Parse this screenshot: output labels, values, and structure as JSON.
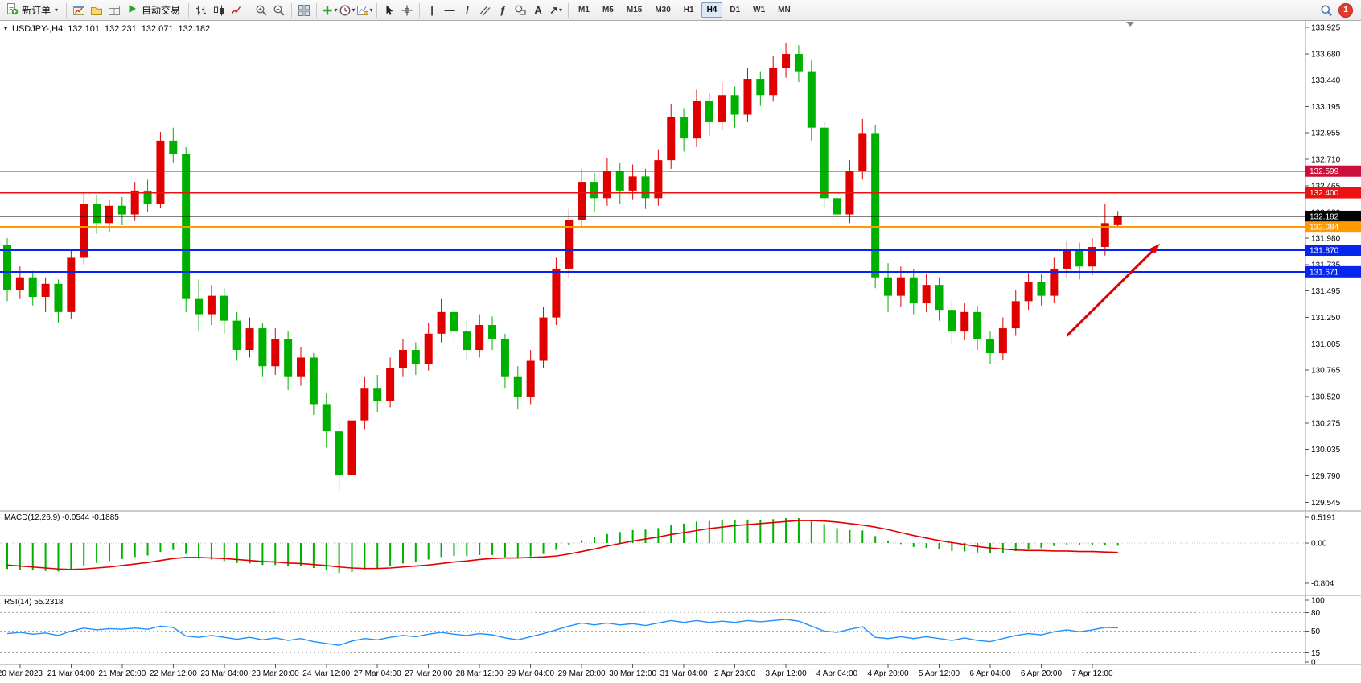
{
  "ui": {
    "info_marker": "▾"
  },
  "toolbar": {
    "caret_glyph": "▾",
    "notification_count": "1",
    "active_timeframe": "H4",
    "timeframes": [
      "M1",
      "M5",
      "M15",
      "M30",
      "H1",
      "H4",
      "D1",
      "W1",
      "MN"
    ],
    "items": [
      {
        "type": "button",
        "name": "new-order-button",
        "icon": "new-order",
        "label": "新订单",
        "caret": true
      },
      {
        "type": "sep"
      },
      {
        "type": "icon",
        "name": "new-chart-icon",
        "icon": "chart-window"
      },
      {
        "type": "icon",
        "name": "profiles-icon",
        "icon": "folder"
      },
      {
        "type": "icon",
        "name": "data-window-icon",
        "icon": "data-window"
      },
      {
        "type": "button",
        "name": "autotrading-button",
        "icon": "play",
        "label": "自动交易"
      },
      {
        "type": "sep"
      },
      {
        "type": "icon",
        "name": "bar-chart-icon",
        "icon": "ohlc-bars"
      },
      {
        "type": "icon",
        "name": "candlestick-chart-icon",
        "icon": "candles"
      },
      {
        "type": "icon",
        "name": "line-chart-icon",
        "icon": "line-chart"
      },
      {
        "type": "sep"
      },
      {
        "type": "icon",
        "name": "zoom-in-icon",
        "icon": "zoom-in"
      },
      {
        "type": "icon",
        "name": "zoom-out-icon",
        "icon": "zoom-out"
      },
      {
        "type": "sep"
      },
      {
        "type": "icon",
        "name": "tile-windows-icon",
        "icon": "tile"
      },
      {
        "type": "sep"
      },
      {
        "type": "icon",
        "name": "indicators-button",
        "icon": "indicator-plus",
        "caret": true
      },
      {
        "type": "icon",
        "name": "periods-button",
        "icon": "clock",
        "caret": true
      },
      {
        "type": "icon",
        "name": "templates-button",
        "icon": "template",
        "caret": true
      },
      {
        "type": "sep"
      },
      {
        "type": "icon",
        "name": "cursor-icon",
        "icon": "cursor"
      },
      {
        "type": "icon",
        "name": "crosshair-icon",
        "icon": "crosshair"
      },
      {
        "type": "sep"
      },
      {
        "type": "icon",
        "name": "vertical-line-icon",
        "glyph": "|"
      },
      {
        "type": "icon",
        "name": "horizontal-line-icon",
        "glyph": "—"
      },
      {
        "type": "icon",
        "name": "trendline-icon",
        "glyph": "/"
      },
      {
        "type": "icon",
        "name": "equidistant-channel-icon",
        "icon": "channel"
      },
      {
        "type": "icon",
        "name": "fibonacci-icon",
        "glyph": "ƒ"
      },
      {
        "type": "icon",
        "name": "shapes-icon",
        "icon": "shapes"
      },
      {
        "type": "icon",
        "name": "text-icon",
        "glyph": "A"
      },
      {
        "type": "icon",
        "name": "arrows-icon",
        "glyph": "↗",
        "caret": true
      },
      {
        "type": "sep"
      },
      {
        "type": "timeframes"
      },
      {
        "type": "spacer"
      },
      {
        "type": "icon",
        "name": "search-icon",
        "icon": "search"
      },
      {
        "type": "badge",
        "name": "notifications-badge"
      }
    ]
  },
  "chart_data": {
    "type": "candlestick",
    "symbol_period": "USDJPY-,H4",
    "ohlc": {
      "open": "132.101",
      "high": "132.231",
      "low": "132.071",
      "close": "132.182"
    },
    "colors": {
      "up": "#e00000",
      "down": "#00b000",
      "macd_hist": "#00b000",
      "macd_signal": "#e00000",
      "rsi_line": "#1e90ff",
      "arrow": "#e00000"
    },
    "price_axis_ticks": [
      "133.925",
      "133.680",
      "133.440",
      "133.195",
      "132.955",
      "132.710",
      "132.465",
      "132.220",
      "131.980",
      "131.735",
      "131.495",
      "131.250",
      "131.005",
      "130.765",
      "130.520",
      "130.275",
      "130.035",
      "129.790",
      "129.545"
    ],
    "time_labels": [
      "20 Mar 2023",
      "21 Mar 04:00",
      "21 Mar 20:00",
      "22 Mar 12:00",
      "23 Mar 04:00",
      "23 Mar 20:00",
      "24 Mar 12:00",
      "27 Mar 04:00",
      "27 Mar 20:00",
      "28 Mar 12:00",
      "29 Mar 04:00",
      "29 Mar 20:00",
      "30 Mar 12:00",
      "31 Mar 04:00",
      "2 Apr 23:00",
      "3 Apr 12:00",
      "4 Apr 04:00",
      "4 Apr 20:00",
      "5 Apr 12:00",
      "6 Apr 04:00",
      "6 Apr 20:00",
      "7 Apr 12:00"
    ],
    "hlines": [
      {
        "price": 132.599,
        "label": "132.599",
        "color": "#cc0f3c",
        "width": 1.5
      },
      {
        "price": 132.4,
        "label": "132.400",
        "color": "#ee1111",
        "width": 1.5
      },
      {
        "price": 132.182,
        "label": "132.182",
        "color": "#000000",
        "width": 1
      },
      {
        "price": 132.084,
        "label": "132.084",
        "color": "#ff9a00",
        "width": 2
      },
      {
        "price": 131.87,
        "label": "131.870",
        "color": "#0626f0",
        "width": 2
      },
      {
        "price": 131.671,
        "label": "131.671",
        "color": "#0626f0",
        "width": 2
      }
    ],
    "arrow": {
      "from_index": 83,
      "from_price": 131.08,
      "to_index": 90.3,
      "to_price": 131.93,
      "color": "#e00000"
    },
    "candles": [
      [
        131.92,
        131.98,
        131.4,
        131.5
      ],
      [
        131.5,
        131.72,
        131.42,
        131.62
      ],
      [
        131.62,
        131.68,
        131.36,
        131.44
      ],
      [
        131.44,
        131.62,
        131.3,
        131.56
      ],
      [
        131.56,
        131.6,
        131.2,
        131.3
      ],
      [
        131.3,
        131.88,
        131.24,
        131.8
      ],
      [
        131.8,
        132.4,
        131.74,
        132.3
      ],
      [
        132.3,
        132.38,
        132.02,
        132.12
      ],
      [
        132.12,
        132.34,
        132.04,
        132.28
      ],
      [
        132.28,
        132.36,
        132.1,
        132.2
      ],
      [
        132.2,
        132.5,
        132.14,
        132.42
      ],
      [
        132.42,
        132.52,
        132.22,
        132.3
      ],
      [
        132.3,
        132.96,
        132.26,
        132.88
      ],
      [
        132.88,
        133.0,
        132.68,
        132.76
      ],
      [
        132.76,
        132.82,
        131.3,
        131.42
      ],
      [
        131.42,
        131.6,
        131.12,
        131.28
      ],
      [
        131.28,
        131.55,
        131.18,
        131.45
      ],
      [
        131.45,
        131.52,
        131.1,
        131.22
      ],
      [
        131.22,
        131.3,
        130.85,
        130.95
      ],
      [
        130.95,
        131.25,
        130.88,
        131.15
      ],
      [
        131.15,
        131.2,
        130.7,
        130.8
      ],
      [
        130.8,
        131.15,
        130.72,
        131.05
      ],
      [
        131.05,
        131.12,
        130.58,
        130.7
      ],
      [
        130.7,
        130.98,
        130.62,
        130.88
      ],
      [
        130.88,
        130.92,
        130.35,
        130.45
      ],
      [
        130.45,
        130.55,
        130.05,
        130.2
      ],
      [
        130.2,
        130.28,
        129.64,
        129.8
      ],
      [
        129.8,
        130.42,
        129.7,
        130.3
      ],
      [
        130.3,
        130.7,
        130.22,
        130.6
      ],
      [
        130.6,
        130.72,
        130.38,
        130.48
      ],
      [
        130.48,
        130.88,
        130.42,
        130.78
      ],
      [
        130.78,
        131.05,
        130.7,
        130.95
      ],
      [
        130.95,
        131.02,
        130.72,
        130.82
      ],
      [
        130.82,
        131.2,
        130.76,
        131.1
      ],
      [
        131.1,
        131.42,
        131.02,
        131.3
      ],
      [
        131.3,
        131.38,
        131.02,
        131.12
      ],
      [
        131.12,
        131.22,
        130.85,
        130.95
      ],
      [
        130.95,
        131.28,
        130.88,
        131.18
      ],
      [
        131.18,
        131.26,
        130.95,
        131.05
      ],
      [
        131.05,
        131.1,
        130.6,
        130.7
      ],
      [
        130.7,
        130.8,
        130.4,
        130.52
      ],
      [
        130.52,
        130.95,
        130.45,
        130.85
      ],
      [
        130.85,
        131.35,
        130.78,
        131.25
      ],
      [
        131.25,
        131.8,
        131.18,
        131.7
      ],
      [
        131.7,
        132.25,
        131.62,
        132.15
      ],
      [
        132.15,
        132.62,
        132.08,
        132.5
      ],
      [
        132.5,
        132.58,
        132.22,
        132.35
      ],
      [
        132.35,
        132.72,
        132.28,
        132.6
      ],
      [
        132.6,
        132.68,
        132.3,
        132.42
      ],
      [
        132.42,
        132.66,
        132.34,
        132.55
      ],
      [
        132.55,
        132.62,
        132.25,
        132.35
      ],
      [
        132.35,
        132.8,
        132.28,
        132.7
      ],
      [
        132.7,
        133.22,
        132.62,
        133.1
      ],
      [
        133.1,
        133.18,
        132.78,
        132.9
      ],
      [
        132.9,
        133.35,
        132.82,
        133.25
      ],
      [
        133.25,
        133.32,
        132.92,
        133.05
      ],
      [
        133.05,
        133.42,
        132.98,
        133.3
      ],
      [
        133.3,
        133.38,
        133.0,
        133.12
      ],
      [
        133.12,
        133.55,
        133.05,
        133.45
      ],
      [
        133.45,
        133.52,
        133.2,
        133.3
      ],
      [
        133.3,
        133.66,
        133.24,
        133.55
      ],
      [
        133.55,
        133.78,
        133.46,
        133.68
      ],
      [
        133.68,
        133.76,
        133.42,
        133.52
      ],
      [
        133.52,
        133.62,
        132.88,
        133.0
      ],
      [
        133.0,
        133.05,
        132.25,
        132.35
      ],
      [
        132.35,
        132.45,
        132.1,
        132.2
      ],
      [
        132.2,
        132.7,
        132.12,
        132.6
      ],
      [
        132.6,
        133.08,
        132.52,
        132.95
      ],
      [
        132.95,
        133.02,
        131.52,
        131.62
      ],
      [
        131.62,
        131.75,
        131.3,
        131.45
      ],
      [
        131.45,
        131.72,
        131.35,
        131.62
      ],
      [
        131.62,
        131.7,
        131.28,
        131.38
      ],
      [
        131.38,
        131.65,
        131.3,
        131.55
      ],
      [
        131.55,
        131.62,
        131.22,
        131.32
      ],
      [
        131.32,
        131.4,
        131.0,
        131.12
      ],
      [
        131.12,
        131.38,
        131.04,
        131.3
      ],
      [
        131.3,
        131.36,
        130.95,
        131.05
      ],
      [
        131.05,
        131.12,
        130.82,
        130.92
      ],
      [
        130.92,
        131.25,
        130.86,
        131.15
      ],
      [
        131.15,
        131.5,
        131.08,
        131.4
      ],
      [
        131.4,
        131.66,
        131.32,
        131.58
      ],
      [
        131.58,
        131.65,
        131.36,
        131.45
      ],
      [
        131.45,
        131.8,
        131.38,
        131.7
      ],
      [
        131.7,
        131.95,
        131.62,
        131.88
      ],
      [
        131.88,
        131.94,
        131.6,
        131.72
      ],
      [
        131.72,
        131.98,
        131.64,
        131.9
      ],
      [
        131.9,
        132.3,
        131.82,
        132.12
      ],
      [
        132.101,
        132.231,
        132.071,
        132.182
      ]
    ],
    "macd": {
      "label": "MACD(12,26,9) -0.0544 -0.1885",
      "scale_ticks": [
        "0.5191",
        "0.00",
        "-0.804"
      ],
      "scale_values": [
        0.5191,
        0,
        -0.804
      ],
      "main": [
        -0.52,
        -0.54,
        -0.55,
        -0.56,
        -0.57,
        -0.52,
        -0.45,
        -0.4,
        -0.36,
        -0.32,
        -0.28,
        -0.25,
        -0.18,
        -0.14,
        -0.22,
        -0.3,
        -0.33,
        -0.36,
        -0.4,
        -0.41,
        -0.44,
        -0.44,
        -0.47,
        -0.46,
        -0.5,
        -0.55,
        -0.6,
        -0.58,
        -0.53,
        -0.5,
        -0.46,
        -0.41,
        -0.38,
        -0.33,
        -0.28,
        -0.26,
        -0.26,
        -0.24,
        -0.24,
        -0.28,
        -0.3,
        -0.27,
        -0.22,
        -0.14,
        -0.04,
        0.06,
        0.12,
        0.18,
        0.22,
        0.26,
        0.27,
        0.3,
        0.36,
        0.39,
        0.43,
        0.44,
        0.46,
        0.46,
        0.47,
        0.47,
        0.48,
        0.5,
        0.5,
        0.46,
        0.38,
        0.3,
        0.26,
        0.25,
        0.14,
        0.05,
        -0.02,
        -0.08,
        -0.1,
        -0.13,
        -0.16,
        -0.17,
        -0.19,
        -0.21,
        -0.2,
        -0.16,
        -0.12,
        -0.1,
        -0.06,
        -0.03,
        -0.03,
        -0.04,
        -0.05,
        -0.0544
      ],
      "signal": [
        -0.44,
        -0.46,
        -0.48,
        -0.5,
        -0.52,
        -0.53,
        -0.52,
        -0.5,
        -0.48,
        -0.45,
        -0.42,
        -0.39,
        -0.35,
        -0.31,
        -0.29,
        -0.29,
        -0.3,
        -0.31,
        -0.33,
        -0.35,
        -0.37,
        -0.38,
        -0.4,
        -0.41,
        -0.43,
        -0.45,
        -0.48,
        -0.5,
        -0.51,
        -0.51,
        -0.5,
        -0.48,
        -0.46,
        -0.44,
        -0.41,
        -0.38,
        -0.36,
        -0.33,
        -0.31,
        -0.3,
        -0.3,
        -0.29,
        -0.28,
        -0.26,
        -0.22,
        -0.17,
        -0.12,
        -0.06,
        -0.01,
        0.04,
        0.08,
        0.12,
        0.17,
        0.21,
        0.25,
        0.29,
        0.32,
        0.35,
        0.37,
        0.39,
        0.41,
        0.43,
        0.45,
        0.45,
        0.44,
        0.42,
        0.39,
        0.36,
        0.32,
        0.27,
        0.21,
        0.15,
        0.1,
        0.05,
        0.01,
        -0.03,
        -0.07,
        -0.1,
        -0.12,
        -0.14,
        -0.15,
        -0.15,
        -0.16,
        -0.16,
        -0.17,
        -0.17,
        -0.18,
        -0.1885
      ]
    },
    "rsi": {
      "label": "RSI(14) 55.2318",
      "scale_ticks": [
        "100",
        "80",
        "50",
        "15",
        "0"
      ],
      "scale_values": [
        100,
        80,
        50,
        15,
        0
      ],
      "levels": [
        80,
        50,
        15
      ],
      "values": [
        46,
        48,
        45,
        47,
        43,
        50,
        55,
        52,
        54,
        53,
        55,
        53,
        58,
        56,
        42,
        40,
        43,
        40,
        37,
        40,
        36,
        39,
        35,
        38,
        33,
        30,
        27,
        34,
        38,
        36,
        40,
        43,
        41,
        45,
        48,
        45,
        43,
        46,
        44,
        39,
        36,
        41,
        46,
        52,
        58,
        63,
        60,
        63,
        60,
        62,
        59,
        63,
        67,
        64,
        67,
        64,
        66,
        64,
        67,
        65,
        67,
        69,
        66,
        58,
        50,
        48,
        53,
        57,
        40,
        38,
        41,
        38,
        41,
        38,
        35,
        39,
        35,
        33,
        38,
        43,
        46,
        44,
        49,
        52,
        49,
        52,
        56,
        55.2318
      ]
    }
  }
}
